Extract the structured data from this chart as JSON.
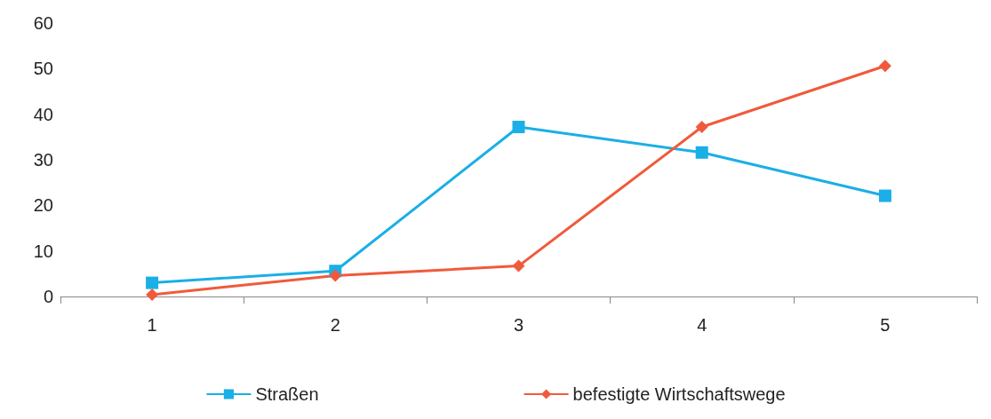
{
  "chart_data": {
    "type": "line",
    "categories": [
      "1",
      "2",
      "3",
      "4",
      "5"
    ],
    "series": [
      {
        "name": "Straßen",
        "color": "#1aafe6",
        "marker": "square",
        "values": [
          3.0,
          5.6,
          37.2,
          31.6,
          22.1
        ]
      },
      {
        "name": "befestigte Wirtschaftswege",
        "color": "#f05a3c",
        "marker": "diamond",
        "values": [
          0.4,
          4.6,
          6.7,
          37.2,
          50.6
        ]
      }
    ],
    "ylim": [
      0,
      60
    ],
    "yticks": [
      0,
      10,
      20,
      30,
      40,
      50,
      60
    ],
    "grid": false,
    "legend": "bottom",
    "line_style": "solid"
  }
}
